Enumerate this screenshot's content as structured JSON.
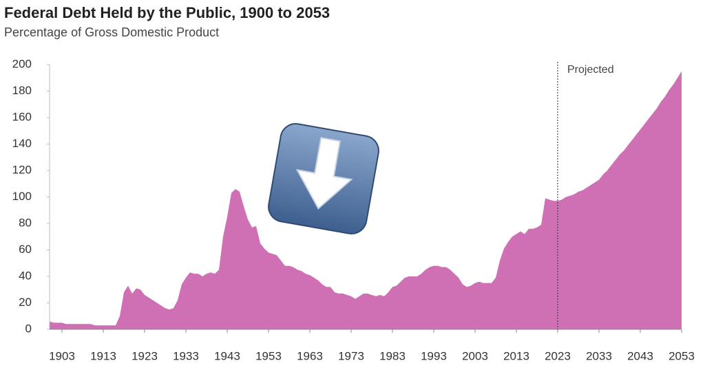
{
  "chart_data": {
    "type": "area",
    "title": "Federal Debt Held by the Public, 1900 to 2053",
    "subtitle": "Percentage of Gross Domestic Product",
    "annotation": "Projected",
    "projection_start": 2023,
    "color": "#d070b4",
    "x": [
      1900,
      1901,
      1902,
      1903,
      1904,
      1905,
      1906,
      1907,
      1908,
      1909,
      1910,
      1911,
      1912,
      1913,
      1914,
      1915,
      1916,
      1917,
      1918,
      1919,
      1920,
      1921,
      1922,
      1923,
      1924,
      1925,
      1926,
      1927,
      1928,
      1929,
      1930,
      1931,
      1932,
      1933,
      1934,
      1935,
      1936,
      1937,
      1938,
      1939,
      1940,
      1941,
      1942,
      1943,
      1944,
      1945,
      1946,
      1947,
      1948,
      1949,
      1950,
      1951,
      1952,
      1953,
      1954,
      1955,
      1956,
      1957,
      1958,
      1959,
      1960,
      1961,
      1962,
      1963,
      1964,
      1965,
      1966,
      1967,
      1968,
      1969,
      1970,
      1971,
      1972,
      1973,
      1974,
      1975,
      1976,
      1977,
      1978,
      1979,
      1980,
      1981,
      1982,
      1983,
      1984,
      1985,
      1986,
      1987,
      1988,
      1989,
      1990,
      1991,
      1992,
      1993,
      1994,
      1995,
      1996,
      1997,
      1998,
      1999,
      2000,
      2001,
      2002,
      2003,
      2004,
      2005,
      2006,
      2007,
      2008,
      2009,
      2010,
      2011,
      2012,
      2013,
      2014,
      2015,
      2016,
      2017,
      2018,
      2019,
      2020,
      2021,
      2022,
      2023,
      2024,
      2025,
      2026,
      2027,
      2028,
      2029,
      2030,
      2031,
      2032,
      2033,
      2034,
      2035,
      2036,
      2037,
      2038,
      2039,
      2040,
      2041,
      2042,
      2043,
      2044,
      2045,
      2046,
      2047,
      2048,
      2049,
      2050,
      2051,
      2052,
      2053
    ],
    "values": [
      6,
      5,
      5,
      5,
      4,
      4,
      4,
      4,
      4,
      4,
      4,
      3,
      3,
      3,
      3,
      3,
      3,
      10,
      28,
      33,
      27,
      31,
      30,
      26,
      24,
      22,
      20,
      18,
      16,
      15,
      16,
      22,
      34,
      39,
      43,
      42,
      42,
      40,
      42,
      43,
      42,
      45,
      70,
      85,
      103,
      106,
      104,
      93,
      83,
      77,
      78,
      65,
      61,
      58,
      57,
      56,
      52,
      48,
      48,
      47,
      45,
      44,
      42,
      41,
      39,
      37,
      34,
      32,
      32,
      28,
      27,
      27,
      26,
      25,
      23,
      25,
      27,
      27,
      26,
      25,
      26,
      25,
      28,
      32,
      33,
      36,
      39,
      40,
      40,
      40,
      42,
      45,
      47,
      48,
      48,
      47,
      47,
      45,
      42,
      39,
      34,
      32,
      33,
      35,
      36,
      35,
      35,
      35,
      39,
      52,
      61,
      66,
      70,
      72,
      74,
      72,
      76,
      76,
      77,
      79,
      99,
      98,
      97,
      97,
      98,
      100,
      101,
      102,
      104,
      105,
      107,
      109,
      111,
      113,
      117,
      120,
      124,
      128,
      132,
      135,
      139,
      143,
      147,
      151,
      155,
      159,
      163,
      167,
      172,
      176,
      181,
      185,
      190,
      195
    ],
    "xlim": [
      1900,
      2053
    ],
    "xticks": [
      1903,
      1913,
      1923,
      1933,
      1943,
      1953,
      1963,
      1973,
      1983,
      1993,
      2003,
      2013,
      2023,
      2033,
      2043,
      2053
    ],
    "ylim": [
      0,
      200
    ],
    "yticks": [
      0,
      20,
      40,
      60,
      80,
      100,
      120,
      140,
      160,
      180,
      200
    ]
  }
}
